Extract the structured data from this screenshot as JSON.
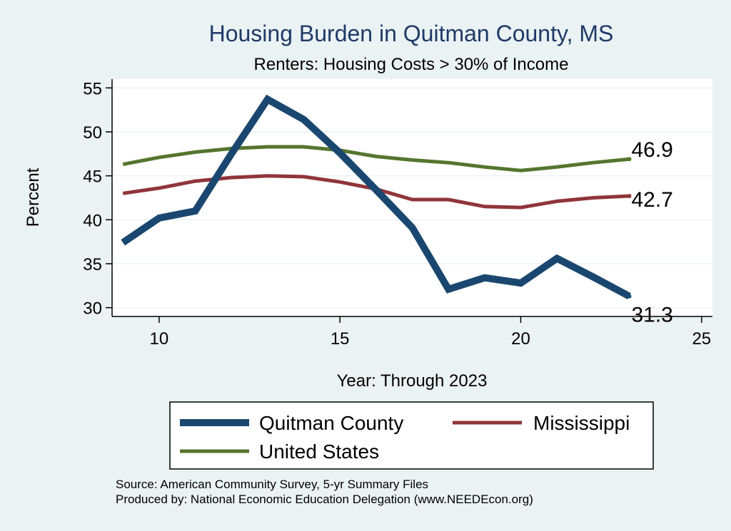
{
  "chart_data": {
    "type": "line",
    "title": "Housing Burden in Quitman County, MS",
    "subtitle": "Renters: Housing Costs > 30% of Income",
    "xlabel": "Year: Through 2023",
    "ylabel": "Percent",
    "xlim": [
      8.7,
      25.3
    ],
    "ylim": [
      29.0,
      56.0
    ],
    "xticks": [
      10,
      15,
      20,
      25
    ],
    "yticks": [
      30,
      35,
      40,
      45,
      50,
      55
    ],
    "grid": true,
    "legend_position": "bottom",
    "x": [
      9,
      10,
      11,
      12,
      13,
      14,
      15,
      16,
      17,
      18,
      19,
      20,
      21,
      22,
      23
    ],
    "series": [
      {
        "name": "Quitman County",
        "color": "#1a476f",
        "values": [
          37.4,
          40.2,
          41.0,
          47.5,
          53.7,
          51.4,
          47.6,
          43.4,
          39.1,
          32.1,
          33.4,
          32.8,
          35.6,
          33.5,
          31.3
        ],
        "end_label": "31.3"
      },
      {
        "name": "Mississippi",
        "color": "#90353b",
        "values": [
          43.0,
          43.6,
          44.4,
          44.8,
          45.0,
          44.9,
          44.3,
          43.5,
          42.3,
          42.3,
          41.5,
          41.4,
          42.1,
          42.5,
          42.7
        ],
        "end_label": "42.7"
      },
      {
        "name": "United States",
        "color": "#55752f",
        "values": [
          46.3,
          47.1,
          47.7,
          48.1,
          48.3,
          48.3,
          47.9,
          47.2,
          46.8,
          46.5,
          46.0,
          45.6,
          46.0,
          46.5,
          46.9
        ],
        "end_label": "46.9"
      }
    ]
  },
  "source_line_1": "Source: American Community Survey, 5-yr Summary Files",
  "source_line_2": "Produced by: National Economic Education Delegation (www.NEEDEcon.org)"
}
